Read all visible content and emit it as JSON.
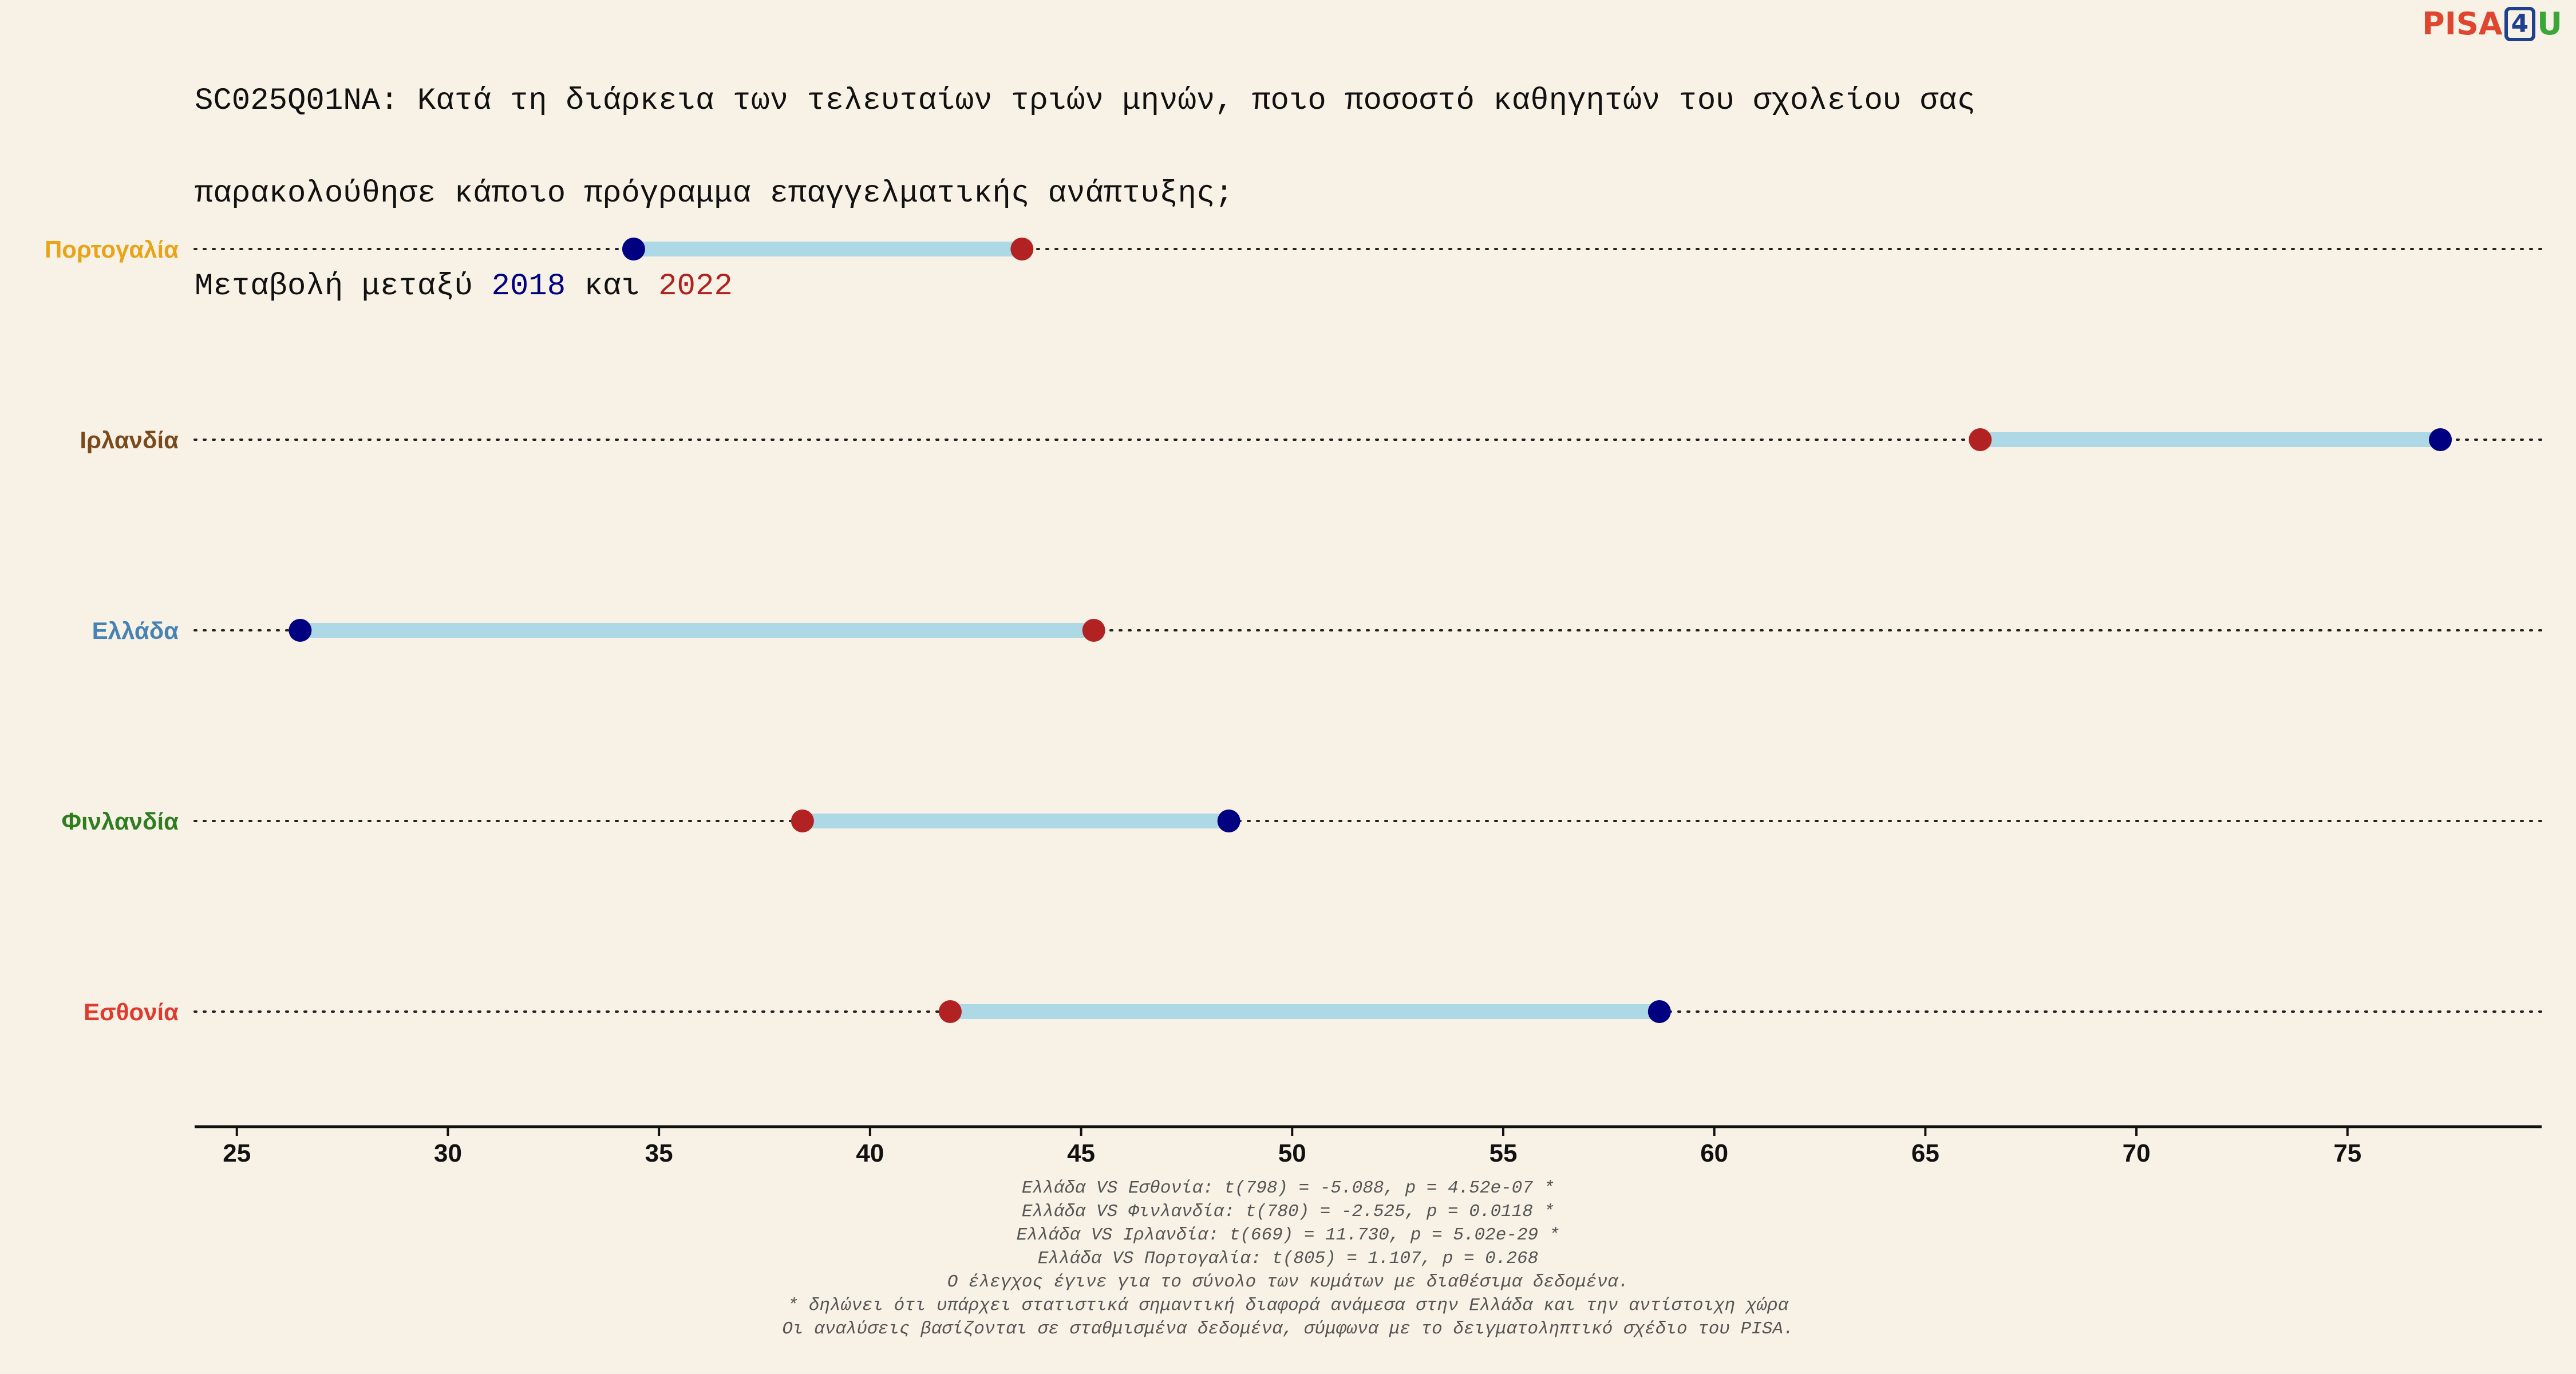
{
  "title": {
    "line1": "SC025Q01NA: Κατά τη διάρκεια των τελευταίων τριών μηνών, ποιο ποσοστό καθηγητών του σχολείου σας",
    "line2": "παρακολούθησε κάποιο πρόγραμμα επαγγελματικής ανάπτυξης;",
    "line3_prefix": "Μεταβολή μεταξύ ",
    "year1": "2018",
    "line3_mid": " και ",
    "year2": "2022"
  },
  "logo": {
    "part1": "PISA",
    "part2": "4",
    "part3": "U"
  },
  "colors": {
    "y2018": "#000080",
    "y2022": "#b22222",
    "connector": "#add8e6",
    "background": "#f7f2e5"
  },
  "chart_data": {
    "type": "dumbbell",
    "x_ticks": [
      25,
      30,
      35,
      40,
      45,
      50,
      55,
      60,
      65,
      70,
      75
    ],
    "xlim": [
      24,
      79.6
    ],
    "grid": "dotted horizontal lines per category",
    "categories": [
      {
        "name": "Πορτογαλία",
        "label_color": "#e8a317",
        "v2018": 34.4,
        "v2022": 43.6
      },
      {
        "name": "Ιρλανδία",
        "label_color": "#7a4a1c",
        "v2018": 77.2,
        "v2022": 66.3
      },
      {
        "name": "Ελλάδα",
        "label_color": "#4682b4",
        "v2018": 26.5,
        "v2022": 45.3
      },
      {
        "name": "Φινλανδία",
        "label_color": "#2e7d1f",
        "v2018": 48.5,
        "v2022": 38.4
      },
      {
        "name": "Εσθονία",
        "label_color": "#e03a2f",
        "v2018": 58.7,
        "v2022": 41.9
      }
    ]
  },
  "notes": [
    "Ελλάδα VS Εσθονία: t(798) = -5.088, p = 4.52e-07 *",
    "Ελλάδα VS Φινλανδία: t(780) = -2.525, p = 0.0118 *",
    "Ελλάδα VS Ιρλανδία: t(669) = 11.730, p = 5.02e-29 *",
    "Ελλάδα VS Πορτογαλία: t(805) = 1.107, p = 0.268",
    "Ο έλεγχος έγινε για το σύνολο των κυμάτων με διαθέσιμα δεδομένα.",
    "* δηλώνει ότι υπάρχει στατιστικά σημαντική διαφορά ανάμεσα στην Ελλάδα και την αντίστοιχη χώρα",
    "Οι αναλύσεις βασίζονται σε σταθμισμένα δεδομένα, σύμφωνα με το δειγματοληπτικό σχέδιο του PISA."
  ]
}
